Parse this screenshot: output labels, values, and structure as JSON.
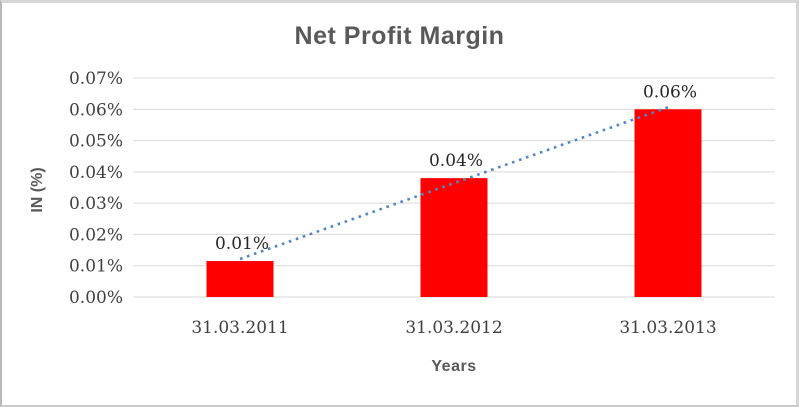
{
  "window": {
    "background": "#ffffff",
    "frame_border_color": "#d6d6d6"
  },
  "chart_data": {
    "type": "bar",
    "title": "Net Profit Margin",
    "xlabel": "Years",
    "ylabel": "IN (%)",
    "categories": [
      "31.03.2011",
      "31.03.2012",
      "31.03.2013"
    ],
    "series": [
      {
        "name": "Net Profit Margin",
        "values": [
          0.0115,
          0.038,
          0.06
        ]
      }
    ],
    "data_labels": [
      "0.01%",
      "0.04%",
      "0.06%"
    ],
    "y_ticks": [
      "0.00%",
      "0.01%",
      "0.02%",
      "0.03%",
      "0.04%",
      "0.05%",
      "0.06%",
      "0.07%"
    ],
    "ylim": [
      0,
      0.07
    ],
    "grid": true,
    "legend": "none",
    "bar_color": "#ff0000",
    "gridline_color": "#d9d9d9",
    "tick_text_color": "#404040",
    "data_label_color": "#262626",
    "title_color": "#595959",
    "trendline": {
      "type": "linear",
      "style": "dotted",
      "color": "#4f86c6",
      "from": {
        "category_index": 0,
        "value": 0.0115
      },
      "to": {
        "category_index": 2,
        "value": 0.06
      }
    }
  }
}
